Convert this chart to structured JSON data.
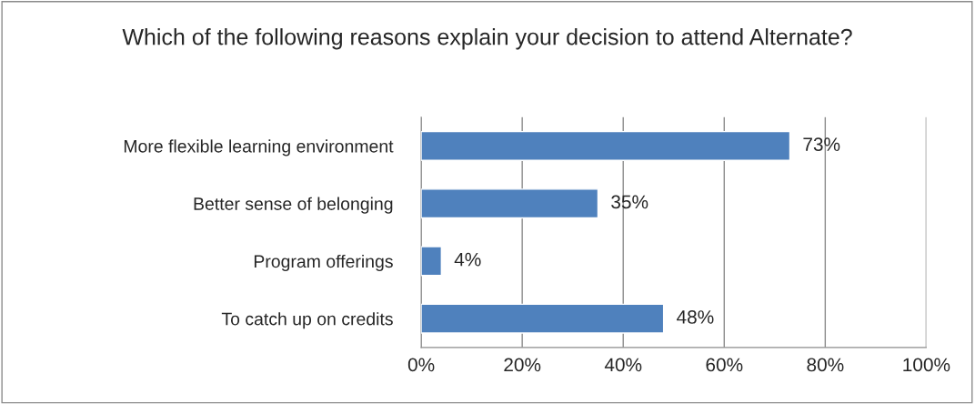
{
  "chart_data": {
    "type": "bar",
    "orientation": "horizontal",
    "title": "Which of the following reasons explain your decision to attend Alternate?",
    "categories": [
      "More flexible learning environment",
      "Better sense of belonging",
      "Program offerings",
      "To catch up on credits"
    ],
    "values": [
      73,
      35,
      4,
      48
    ],
    "value_labels": [
      "73%",
      "35%",
      "4%",
      "48%"
    ],
    "color": "#4f81bd",
    "xlim": [
      0,
      100
    ],
    "xticks": [
      {
        "value": 0,
        "label": "0%"
      },
      {
        "value": 20,
        "label": "20%"
      },
      {
        "value": 40,
        "label": "40%"
      },
      {
        "value": 60,
        "label": "60%"
      },
      {
        "value": 80,
        "label": "80%"
      },
      {
        "value": 100,
        "label": "100%"
      }
    ],
    "grid": "x"
  }
}
